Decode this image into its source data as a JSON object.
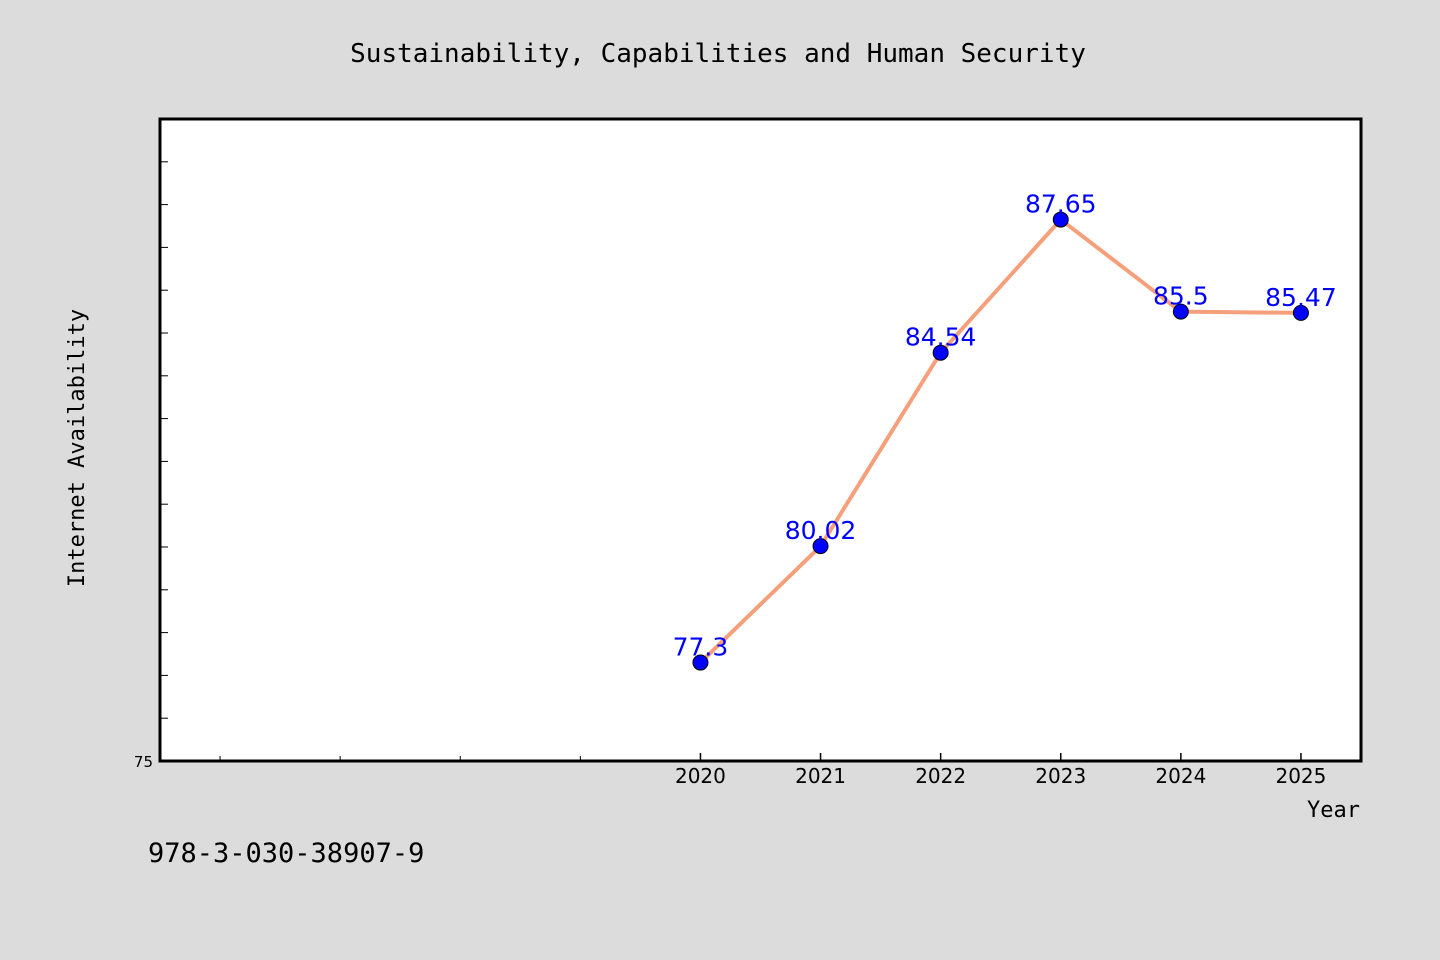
{
  "chart_data": {
    "type": "line",
    "title": "Sustainability, Capabilities and Human Security",
    "xlabel": "Year",
    "ylabel": "Internet Availability",
    "x": [
      2020,
      2021,
      2022,
      2023,
      2024,
      2025
    ],
    "series": [
      {
        "values": [
          77.3,
          80.02,
          84.54,
          87.65,
          85.5,
          85.47
        ],
        "color": "#f5a07a",
        "marker_color": "#0000ff"
      }
    ],
    "xlim": [
      2015.5,
      2025.5
    ],
    "ylim": [
      75,
      90
    ],
    "yticks_labeled": [
      75
    ],
    "y_minor_step": 1,
    "x_minor_ticks": [
      2016,
      2017,
      2018,
      2019
    ],
    "grid": false,
    "data_label_color": "#0000ff"
  },
  "footer": {
    "code": "978-3-030-38907-9"
  }
}
